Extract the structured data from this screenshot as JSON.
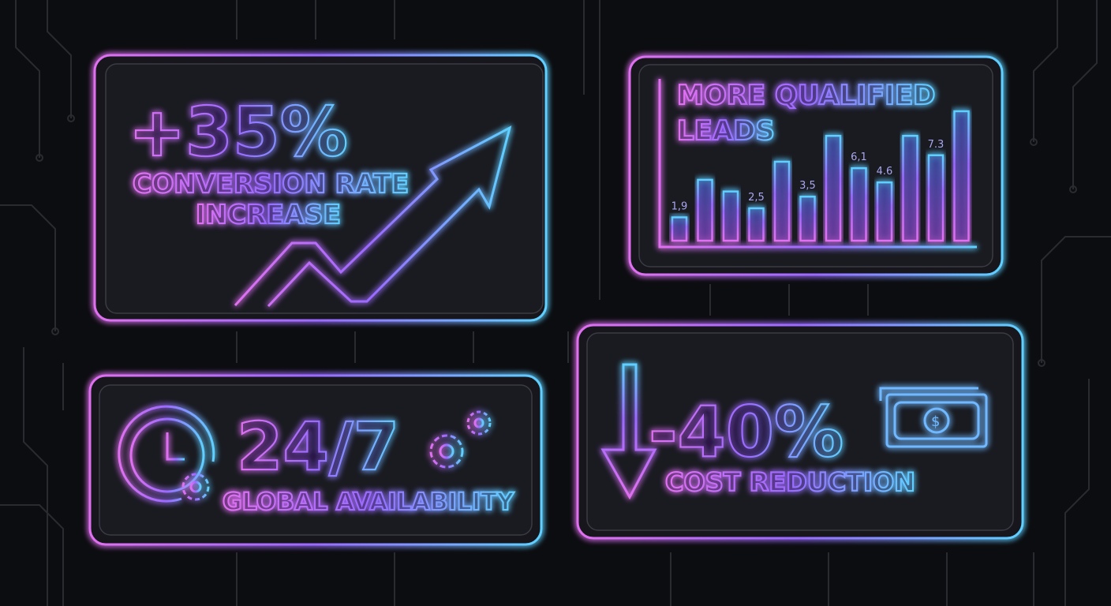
{
  "colors": {
    "background": "#0c0d10",
    "panel": "#1a1b21",
    "pink": "#e070f0",
    "violet": "#9a6bff",
    "cyan": "#5fd0ff",
    "circuit": "#2a2b30"
  },
  "conversion": {
    "value": "+35%",
    "label_line1": "CONVERSION RATE",
    "label_line2": "INCREASE",
    "icon": "trending-up-arrow-icon"
  },
  "leads": {
    "title_line1": "MORE QUALIFIED",
    "title_line2": "LEADS",
    "chart_data": {
      "type": "bar",
      "bar_levels": [
        0.18,
        0.47,
        0.38,
        0.25,
        0.61,
        0.34,
        0.81,
        0.56,
        0.45,
        0.81,
        0.66,
        1.0
      ],
      "data_labels": [
        "1,9",
        "",
        "",
        "2,5",
        "",
        "3,5",
        "",
        "6,1",
        "4.6",
        "",
        "7.3",
        ""
      ]
    }
  },
  "availability": {
    "value": "24/7",
    "label": "GLOBAL AVAILABILITY",
    "icons": [
      "clock-icon",
      "gear-icon"
    ]
  },
  "cost": {
    "value": "-40%",
    "label": "COST REDUCTION",
    "icons": [
      "down-arrow-icon",
      "dollar-bill-icon"
    ]
  }
}
